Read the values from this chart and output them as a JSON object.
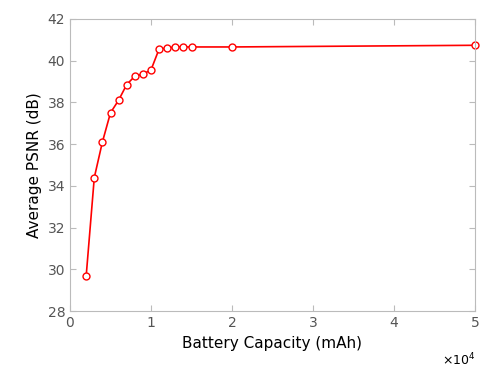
{
  "x": [
    2000,
    3000,
    4000,
    5000,
    6000,
    7000,
    8000,
    9000,
    10000,
    11000,
    12000,
    13000,
    14000,
    15000,
    20000,
    50000
  ],
  "y": [
    29.7,
    34.4,
    36.1,
    37.5,
    38.1,
    38.85,
    39.25,
    39.35,
    39.55,
    40.55,
    40.6,
    40.65,
    40.65,
    40.65,
    40.65,
    40.73
  ],
  "xlabel": "Battery Capacity (mAh)",
  "ylabel": "Average PSNR (dB)",
  "xlim": [
    0,
    50000
  ],
  "ylim": [
    28,
    42
  ],
  "xticks": [
    0,
    10000,
    20000,
    30000,
    40000,
    50000
  ],
  "xtick_labels": [
    "0",
    "1",
    "2",
    "3",
    "4",
    "5"
  ],
  "yticks": [
    28,
    30,
    32,
    34,
    36,
    38,
    40,
    42
  ],
  "ytick_labels": [
    "28",
    "30",
    "32",
    "34",
    "36",
    "38",
    "40",
    "42"
  ],
  "line_color": "#FF0000",
  "marker": "o",
  "marker_facecolor": "white",
  "marker_edgecolor": "#FF0000",
  "markersize": 5,
  "linewidth": 1.2,
  "xlabel_fontsize": 11,
  "ylabel_fontsize": 11,
  "tick_fontsize": 10,
  "background_color": "#ffffff",
  "spine_color": "#bbbbbb",
  "grid": false
}
